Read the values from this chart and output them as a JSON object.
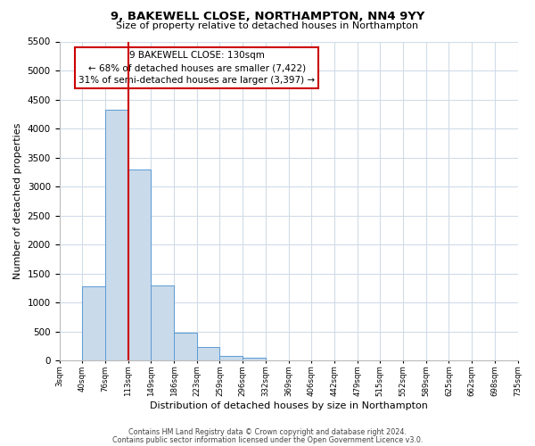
{
  "title": "9, BAKEWELL CLOSE, NORTHAMPTON, NN4 9YY",
  "subtitle": "Size of property relative to detached houses in Northampton",
  "xlabel": "Distribution of detached houses by size in Northampton",
  "ylabel": "Number of detached properties",
  "bin_labels": [
    "3sqm",
    "40sqm",
    "76sqm",
    "113sqm",
    "149sqm",
    "186sqm",
    "223sqm",
    "259sqm",
    "296sqm",
    "332sqm",
    "369sqm",
    "406sqm",
    "442sqm",
    "479sqm",
    "515sqm",
    "552sqm",
    "589sqm",
    "625sqm",
    "662sqm",
    "698sqm",
    "735sqm"
  ],
  "bar_values": [
    0,
    1270,
    4330,
    3300,
    1290,
    480,
    230,
    80,
    50,
    0,
    0,
    0,
    0,
    0,
    0,
    0,
    0,
    0,
    0,
    0
  ],
  "bar_color": "#c9daea",
  "bar_edge_color": "#5b9bd5",
  "vline_x": 3,
  "vline_color": "#cc0000",
  "ylim": [
    0,
    5500
  ],
  "yticks": [
    0,
    500,
    1000,
    1500,
    2000,
    2500,
    3000,
    3500,
    4000,
    4500,
    5000,
    5500
  ],
  "annotation_title": "9 BAKEWELL CLOSE: 130sqm",
  "annotation_line1": "← 68% of detached houses are smaller (7,422)",
  "annotation_line2": "31% of semi-detached houses are larger (3,397) →",
  "annotation_box_color": "#ffffff",
  "annotation_box_edge": "#cc0000",
  "footer1": "Contains HM Land Registry data © Crown copyright and database right 2024.",
  "footer2": "Contains public sector information licensed under the Open Government Licence v3.0.",
  "grid_color": "#d0dce8",
  "bg_color": "#ffffff"
}
